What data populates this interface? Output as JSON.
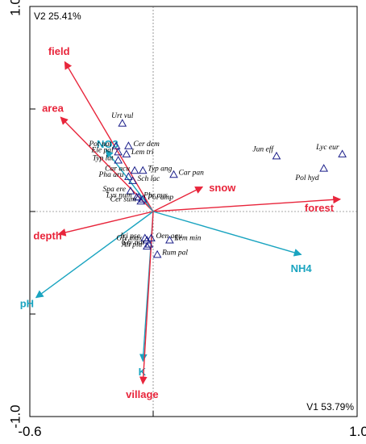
{
  "chart_data": {
    "type": "scatter",
    "subtype": "ordination-biplot",
    "axis1_label": "V1 53.79%",
    "axis2_label": "V2 25.41%",
    "xlim": [
      -0.6,
      1.0
    ],
    "ylim": [
      -1.0,
      1.0
    ],
    "x_ticks": [
      {
        "value": -0.6,
        "label": "-0.6"
      },
      {
        "value": 1.0,
        "label": "1.0"
      }
    ],
    "y_ticks": [
      {
        "value": 1.0,
        "label": "1.0"
      },
      {
        "value": -1.0,
        "label": "-1.0"
      }
    ],
    "grid": false,
    "colors": {
      "red_arrows": "#e8253b",
      "cyan_arrows": "#1aa4c0",
      "species": "#1b1f8a"
    },
    "env_vectors": [
      {
        "name": "field",
        "x": -0.43,
        "y": 0.73,
        "color": "red"
      },
      {
        "name": "area",
        "x": -0.45,
        "y": 0.46,
        "color": "red"
      },
      {
        "name": "NO3",
        "x": -0.23,
        "y": 0.3,
        "color": "cyan"
      },
      {
        "name": "snow",
        "x": 0.24,
        "y": 0.12,
        "color": "red"
      },
      {
        "name": "forest",
        "x": 0.91,
        "y": 0.06,
        "color": "red"
      },
      {
        "name": "depth",
        "x": -0.46,
        "y": -0.11,
        "color": "red"
      },
      {
        "name": "NH4",
        "x": 0.72,
        "y": -0.21,
        "color": "cyan"
      },
      {
        "name": "pH",
        "x": -0.57,
        "y": -0.42,
        "color": "cyan"
      },
      {
        "name": "K",
        "x": -0.05,
        "y": -0.73,
        "color": "cyan"
      },
      {
        "name": "village",
        "x": -0.05,
        "y": -0.84,
        "color": "red"
      }
    ],
    "species": [
      {
        "name": "Urt vul",
        "x": -0.15,
        "y": 0.43
      },
      {
        "name": "Pot nat",
        "x": -0.18,
        "y": 0.32
      },
      {
        "name": "Ele pal",
        "x": -0.17,
        "y": 0.29
      },
      {
        "name": "Cer dem",
        "x": -0.12,
        "y": 0.32
      },
      {
        "name": "Lem tri",
        "x": -0.13,
        "y": 0.28
      },
      {
        "name": "Typ lat",
        "x": -0.17,
        "y": 0.25
      },
      {
        "name": "Typ ang",
        "x": -0.05,
        "y": 0.2
      },
      {
        "name": "Car acu",
        "x": -0.09,
        "y": 0.2
      },
      {
        "name": "Sch lac",
        "x": -0.1,
        "y": 0.15
      },
      {
        "name": "Pha aru",
        "x": -0.12,
        "y": 0.17
      },
      {
        "name": "Car pan",
        "x": 0.1,
        "y": 0.18
      },
      {
        "name": "Spa ere",
        "x": -0.11,
        "y": 0.1
      },
      {
        "name": "Phr aus",
        "x": -0.07,
        "y": 0.07
      },
      {
        "name": "Lys num",
        "x": -0.08,
        "y": 0.07
      },
      {
        "name": "Pol amp",
        "x": -0.05,
        "y": 0.06
      },
      {
        "name": "Cer sum",
        "x": -0.06,
        "y": 0.05
      },
      {
        "name": "Jun eff",
        "x": 0.6,
        "y": 0.27
      },
      {
        "name": "Lyc eur",
        "x": 0.92,
        "y": 0.28
      },
      {
        "name": "Pol hyd",
        "x": 0.83,
        "y": 0.21
      },
      {
        "name": "Iri pse",
        "x": -0.04,
        "y": -0.13
      },
      {
        "name": "Oen aqu",
        "x": -0.01,
        "y": -0.13
      },
      {
        "name": "Gly max",
        "x": -0.03,
        "y": -0.14
      },
      {
        "name": "Lem min",
        "x": 0.08,
        "y": -0.14
      },
      {
        "name": "Gly not",
        "x": -0.02,
        "y": -0.16
      },
      {
        "name": "Ali pla",
        "x": -0.03,
        "y": -0.17
      },
      {
        "name": "Rum pal",
        "x": 0.02,
        "y": -0.21
      }
    ]
  }
}
